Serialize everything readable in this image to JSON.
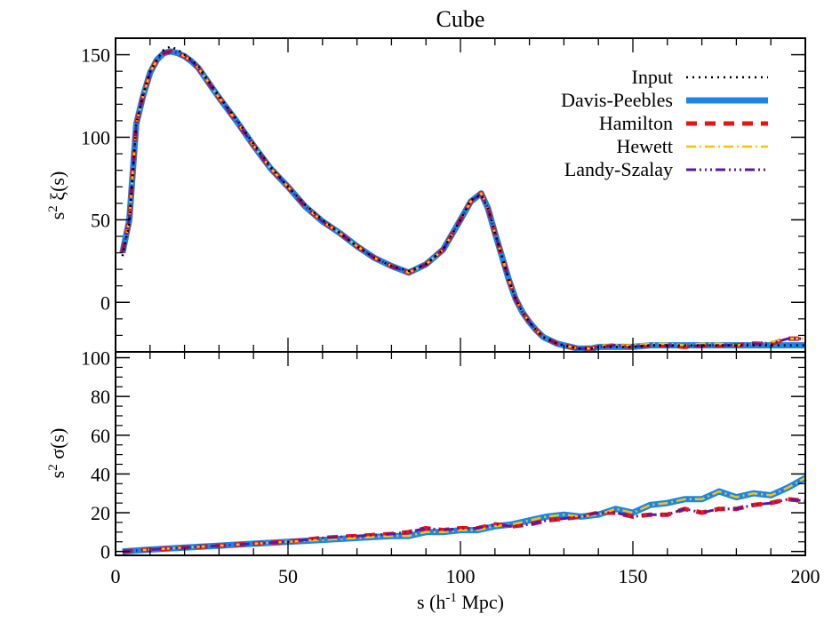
{
  "chart_data": {
    "type": "line",
    "title": "Cube",
    "xlabel_parts": {
      "base": "s (h",
      "sup": "-1",
      "tail": " Mpc)"
    },
    "xlim": [
      0,
      200
    ],
    "xticks": [
      "0",
      "50",
      "100",
      "150",
      "200"
    ],
    "legend": {
      "placement": "top-right"
    },
    "series_styles": [
      {
        "name": "Input",
        "color": "#000000",
        "style": "dotted"
      },
      {
        "name": "Davis-Peebles",
        "color": "#1a87e8",
        "style": "solid"
      },
      {
        "name": "Hamilton",
        "color": "#ee1111",
        "style": "dashed"
      },
      {
        "name": "Hewett",
        "color": "#f5c211",
        "style": "dashdot"
      },
      {
        "name": "Landy-Szalay",
        "color": "#5a1aa0",
        "style": "dashdotdotdot"
      }
    ],
    "panels": [
      {
        "id": "top",
        "ylabel_parts": {
          "pre": "s",
          "sup": "2",
          "post": " ξ(s)"
        },
        "ylim": [
          -30,
          160
        ],
        "yticks": [
          0,
          50,
          100,
          150
        ],
        "x": [
          2,
          4,
          6,
          8,
          10,
          12,
          14,
          16,
          18,
          20,
          22,
          24,
          26,
          28,
          30,
          35,
          40,
          45,
          50,
          55,
          60,
          65,
          70,
          75,
          80,
          85,
          90,
          95,
          100,
          103,
          106,
          108,
          110,
          112,
          114,
          116,
          118,
          120,
          122,
          124,
          126,
          128,
          130,
          132,
          134,
          136,
          138,
          140,
          145,
          150,
          155,
          160,
          165,
          170,
          175,
          180,
          185,
          190,
          195,
          200
        ],
        "series": [
          {
            "name": "Input",
            "values": [
              28,
              48,
              108,
              126,
              140,
              147,
              153,
              155,
              153,
              150,
              147,
              143,
              137,
              131,
              125,
              111,
              96,
              82,
              70,
              59,
              50,
              42,
              34,
              27,
              22,
              19,
              23,
              32,
              50,
              62,
              65,
              57,
              42,
              28,
              14,
              2,
              -6,
              -12,
              -17,
              -21,
              -23,
              -25,
              -26,
              -27,
              -28,
              -28,
              -28,
              -27,
              -27,
              -27,
              -26,
              -26,
              -26,
              -26,
              -26,
              -26,
              -26,
              -26,
              -26,
              -26
            ]
          },
          {
            "name": "Davis-Peebles",
            "values": [
              30,
              50,
              108,
              125,
              139,
              147,
              151,
              152,
              151,
              149,
              146,
              142,
              136,
              130,
              124,
              110,
              95,
              81,
              70,
              58,
              49,
              42,
              34,
              27,
              22,
              18,
              23,
              32,
              50,
              61,
              66,
              57,
              42,
              28,
              14,
              2,
              -6,
              -12,
              -17,
              -21,
              -23,
              -25,
              -26,
              -27,
              -28,
              -28,
              -28,
              -27,
              -27,
              -27,
              -26,
              -26,
              -26,
              -26,
              -26,
              -26,
              -26,
              -26,
              -26,
              -26
            ]
          },
          {
            "name": "Hamilton",
            "values": [
              30,
              50,
              108,
              125,
              139,
              147,
              151,
              152,
              151,
              149,
              146,
              142,
              136,
              130,
              124,
              110,
              95,
              81,
              70,
              58,
              49,
              42,
              34,
              27,
              22,
              18,
              23,
              32,
              50,
              61,
              66,
              57,
              42,
              28,
              14,
              2,
              -6,
              -12,
              -17,
              -21,
              -23,
              -25,
              -26,
              -27,
              -28,
              -28,
              -28,
              -27,
              -26,
              -27,
              -26,
              -26,
              -27,
              -26,
              -26,
              -26,
              -25,
              -25,
              -22,
              -22
            ]
          },
          {
            "name": "Hewett",
            "values": [
              30,
              50,
              108,
              125,
              139,
              147,
              151,
              152,
              151,
              149,
              146,
              142,
              136,
              130,
              124,
              110,
              95,
              81,
              70,
              58,
              49,
              42,
              34,
              27,
              22,
              18,
              23,
              32,
              50,
              61,
              66,
              57,
              42,
              28,
              14,
              2,
              -6,
              -12,
              -17,
              -21,
              -23,
              -25,
              -26,
              -27,
              -28,
              -28,
              -28,
              -26,
              -26,
              -26,
              -25,
              -25,
              -26,
              -25,
              -25,
              -26,
              -25,
              -24,
              -22,
              -22
            ]
          },
          {
            "name": "Landy-Szalay",
            "values": [
              30,
              50,
              108,
              125,
              139,
              147,
              151,
              152,
              151,
              149,
              146,
              142,
              136,
              130,
              124,
              110,
              95,
              81,
              70,
              58,
              49,
              42,
              34,
              27,
              22,
              18,
              23,
              32,
              50,
              61,
              66,
              57,
              42,
              28,
              14,
              2,
              -6,
              -12,
              -17,
              -21,
              -23,
              -25,
              -26,
              -27,
              -28,
              -28,
              -28,
              -27,
              -26,
              -27,
              -26,
              -26,
              -27,
              -26,
              -26,
              -26,
              -25,
              -25,
              -22,
              -22
            ]
          }
        ]
      },
      {
        "id": "bottom",
        "ylabel_parts": {
          "pre": "s",
          "sup": "2",
          "post": " σ(s)"
        },
        "ylim": [
          -2,
          103
        ],
        "yticks": [
          0,
          20,
          40,
          60,
          80,
          100
        ],
        "x": [
          2,
          10,
          20,
          30,
          40,
          50,
          60,
          70,
          80,
          85,
          90,
          95,
          100,
          105,
          110,
          115,
          120,
          125,
          130,
          135,
          140,
          145,
          150,
          155,
          160,
          165,
          170,
          175,
          180,
          185,
          190,
          195,
          200
        ],
        "series": [
          {
            "name": "Davis-Peebles",
            "values": [
              0,
              1,
              2,
              3,
              4,
              5,
              6,
              7,
              8,
              8,
              10,
              10,
              11,
              11,
              13,
              14,
              16,
              18,
              19,
              18,
              19,
              22,
              20,
              24,
              25,
              27,
              27,
              31,
              28,
              30,
              29,
              33,
              38
            ]
          },
          {
            "name": "Hewett",
            "values": [
              0,
              1,
              2,
              3,
              4,
              5,
              6,
              7,
              8,
              8,
              10,
              10,
              11,
              11,
              13,
              14,
              16,
              18,
              19,
              18,
              19,
              22,
              20,
              24,
              25,
              27,
              27,
              31,
              28,
              30,
              29,
              33,
              38
            ]
          },
          {
            "name": "Hamilton",
            "values": [
              0,
              1,
              2,
              3,
              4,
              5,
              7,
              8,
              9,
              10,
              12,
              11,
              12,
              12,
              14,
              13,
              14,
              16,
              17,
              18,
              20,
              20,
              18,
              19,
              19,
              22,
              20,
              22,
              22,
              24,
              25,
              27,
              26
            ]
          },
          {
            "name": "Landy-Szalay",
            "values": [
              0,
              1,
              2,
              3,
              4,
              5,
              7,
              8,
              9,
              10,
              12,
              11,
              12,
              12,
              14,
              13,
              14,
              16,
              17,
              18,
              20,
              20,
              18,
              19,
              19,
              22,
              20,
              22,
              22,
              24,
              25,
              27,
              26
            ]
          }
        ]
      }
    ]
  }
}
